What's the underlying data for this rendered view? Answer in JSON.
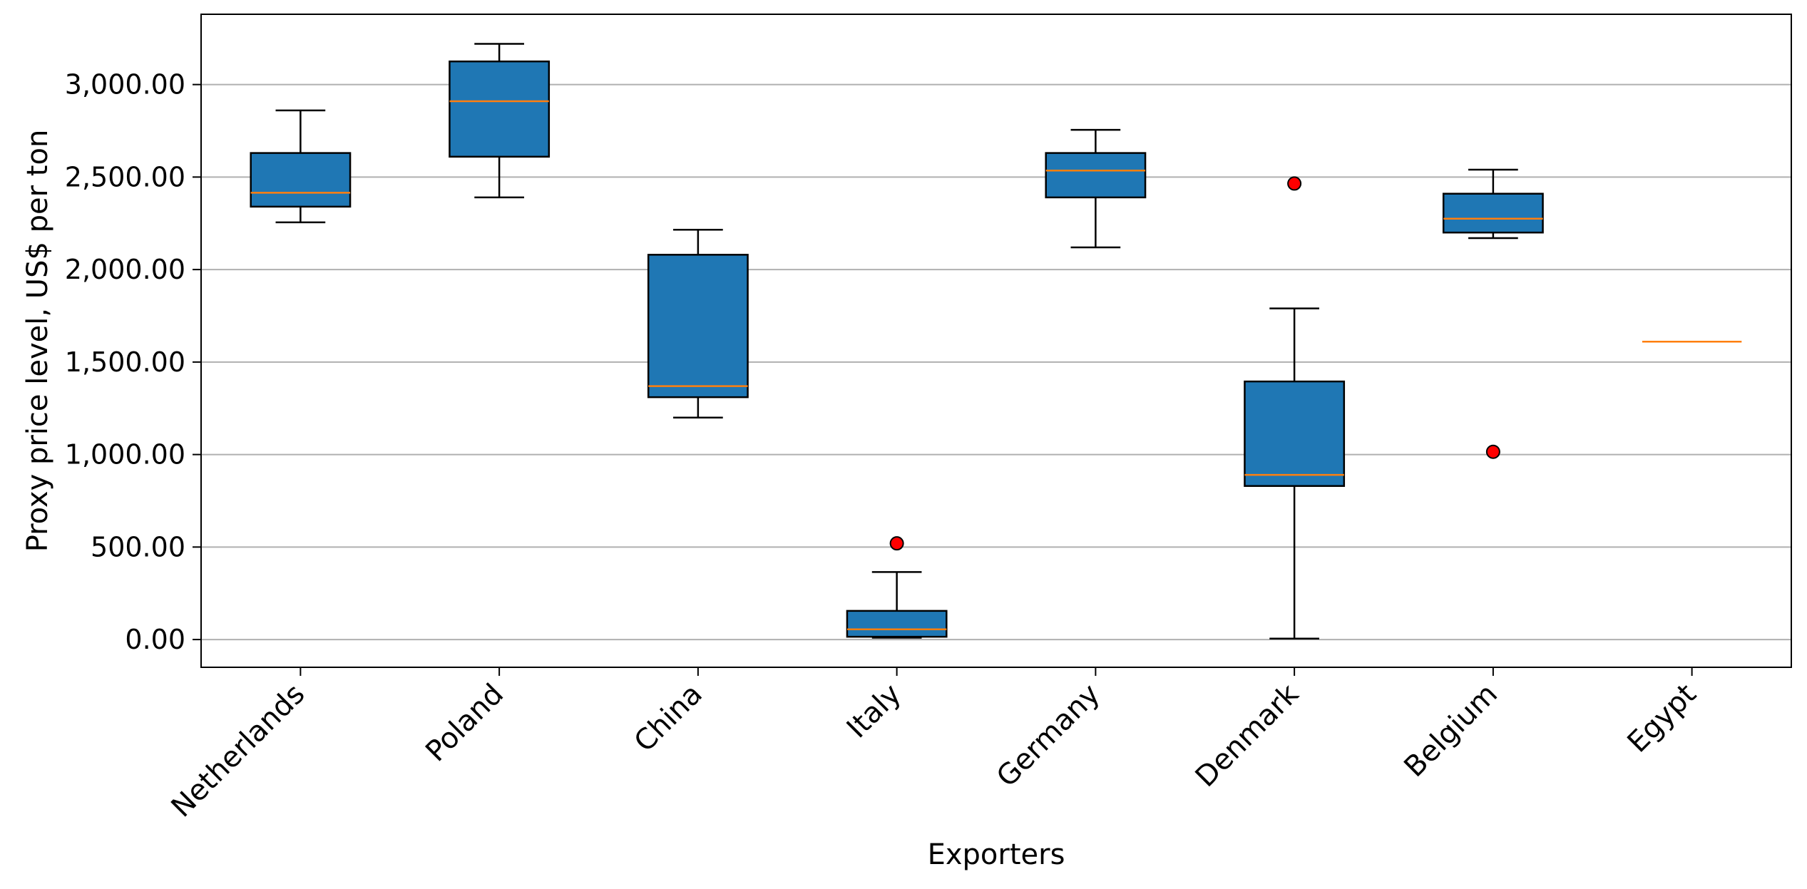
{
  "chart_data": {
    "type": "box",
    "title": "",
    "xlabel": "Exporters",
    "ylabel": "Proxy price level, US$ per ton",
    "ylim": [
      -150,
      3380
    ],
    "yticks": [
      0,
      500,
      1000,
      1500,
      2000,
      2500,
      3000
    ],
    "ytick_labels": [
      "0.00",
      "500.00",
      "1,000.00",
      "1,500.00",
      "2,000.00",
      "2,500.00",
      "3,000.00"
    ],
    "grid": "horizontal",
    "categories": [
      "Netherlands",
      "Poland",
      "China",
      "Italy",
      "Germany",
      "Denmark",
      "Belgium",
      "Egypt"
    ],
    "boxes": [
      {
        "category": "Netherlands",
        "whisker_low": 2255,
        "q1": 2340,
        "median": 2415,
        "q3": 2630,
        "whisker_high": 2860,
        "outliers": []
      },
      {
        "category": "Poland",
        "whisker_low": 2390,
        "q1": 2610,
        "median": 2910,
        "q3": 3125,
        "whisker_high": 3220,
        "outliers": []
      },
      {
        "category": "China",
        "whisker_low": 1200,
        "q1": 1310,
        "median": 1370,
        "q3": 2080,
        "whisker_high": 2215,
        "outliers": []
      },
      {
        "category": "Italy",
        "whisker_low": 10,
        "q1": 15,
        "median": 55,
        "q3": 155,
        "whisker_high": 365,
        "outliers": [
          520
        ]
      },
      {
        "category": "Germany",
        "whisker_low": 2120,
        "q1": 2390,
        "median": 2535,
        "q3": 2630,
        "whisker_high": 2755,
        "outliers": []
      },
      {
        "category": "Denmark",
        "whisker_low": 5,
        "q1": 830,
        "median": 890,
        "q3": 1395,
        "whisker_high": 1790,
        "outliers": [
          2465
        ]
      },
      {
        "category": "Belgium",
        "whisker_low": 2170,
        "q1": 2200,
        "median": 2275,
        "q3": 2410,
        "whisker_high": 2540,
        "outliers": [
          1015
        ]
      },
      {
        "category": "Egypt",
        "whisker_low": 1610,
        "q1": 1610,
        "median": 1610,
        "q3": 1610,
        "whisker_high": 1610,
        "outliers": []
      }
    ],
    "colors": {
      "box_fill": "#1f77b4",
      "median": "#ff7f0e",
      "outlier": "#ff0000",
      "grid": "#b0b0b0"
    }
  }
}
